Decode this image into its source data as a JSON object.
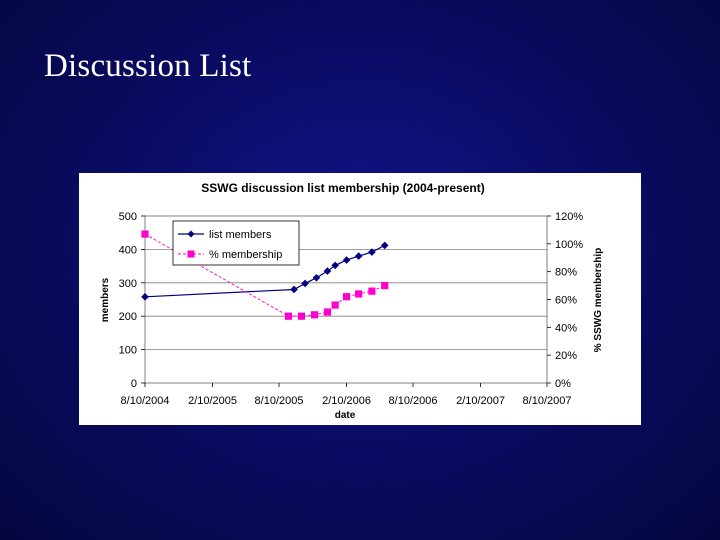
{
  "slide": {
    "title": "Discussion List"
  },
  "chart_data": {
    "type": "line",
    "title": "SSWG discussion list membership (2004-present)",
    "xlabel": "date",
    "ylabel": "members",
    "y2label": "% SSWG membership",
    "x_ticks": [
      "8/10/2004",
      "2/10/2005",
      "8/10/2005",
      "2/10/2006",
      "8/10/2006",
      "2/10/2007",
      "8/10/2007"
    ],
    "ylim": [
      0,
      500
    ],
    "y_ticks": [
      "0",
      "100",
      "200",
      "300",
      "400",
      "500"
    ],
    "y2lim": [
      0,
      1.2
    ],
    "y2_ticks": [
      "0%",
      "20%",
      "40%",
      "60%",
      "80%",
      "100%",
      "120%"
    ],
    "grid": true,
    "legend_position": "top-left",
    "series": [
      {
        "name": "list members",
        "axis": "left",
        "color": "#000080",
        "marker": "diamond",
        "style": "solid",
        "points": [
          {
            "x": "2004-08-10",
            "y": 258
          },
          {
            "x": "2005-09-20",
            "y": 280
          },
          {
            "x": "2005-10-20",
            "y": 298
          },
          {
            "x": "2005-11-20",
            "y": 315
          },
          {
            "x": "2005-12-20",
            "y": 335
          },
          {
            "x": "2006-01-10",
            "y": 352
          },
          {
            "x": "2006-02-10",
            "y": 368
          },
          {
            "x": "2006-03-15",
            "y": 380
          },
          {
            "x": "2006-04-20",
            "y": 392
          },
          {
            "x": "2006-05-25",
            "y": 412
          }
        ]
      },
      {
        "name": "% membership",
        "axis": "right",
        "color": "#ff00cc",
        "marker": "square",
        "style": "dashed",
        "points": [
          {
            "x": "2004-08-10",
            "y": 1.07
          },
          {
            "x": "2005-09-05",
            "y": 0.48
          },
          {
            "x": "2005-10-10",
            "y": 0.48
          },
          {
            "x": "2005-11-15",
            "y": 0.49
          },
          {
            "x": "2005-12-20",
            "y": 0.51
          },
          {
            "x": "2006-01-10",
            "y": 0.56
          },
          {
            "x": "2006-02-10",
            "y": 0.62
          },
          {
            "x": "2006-03-15",
            "y": 0.64
          },
          {
            "x": "2006-04-20",
            "y": 0.66
          },
          {
            "x": "2006-05-25",
            "y": 0.7
          }
        ]
      }
    ]
  }
}
